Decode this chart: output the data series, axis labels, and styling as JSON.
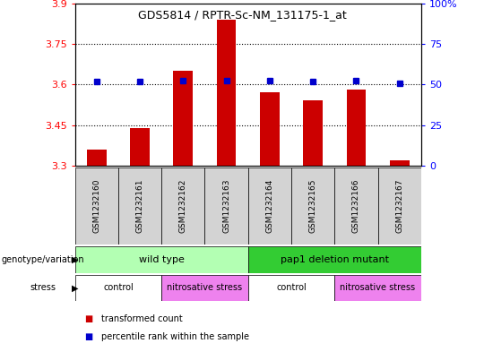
{
  "title": "GDS5814 / RPTR-Sc-NM_131175-1_at",
  "samples": [
    "GSM1232160",
    "GSM1232161",
    "GSM1232162",
    "GSM1232163",
    "GSM1232164",
    "GSM1232165",
    "GSM1232166",
    "GSM1232167"
  ],
  "transformed_counts": [
    3.36,
    3.44,
    3.65,
    3.84,
    3.57,
    3.54,
    3.58,
    3.32
  ],
  "percentile_values": [
    3.61,
    3.61,
    3.615,
    3.615,
    3.615,
    3.61,
    3.615,
    3.605
  ],
  "ylim_left": [
    3.3,
    3.9
  ],
  "ylim_right": [
    0,
    100
  ],
  "yticks_left": [
    3.3,
    3.45,
    3.6,
    3.75,
    3.9
  ],
  "yticks_right": [
    0,
    25,
    50,
    75,
    100
  ],
  "ytick_labels_left": [
    "3.3",
    "3.45",
    "3.6",
    "3.75",
    "3.9"
  ],
  "ytick_labels_right": [
    "0",
    "25",
    "50",
    "75",
    "100%"
  ],
  "bar_color": "#cc0000",
  "percentile_color": "#0000cc",
  "bar_bottom": 3.3,
  "genotype_groups": [
    {
      "label": "wild type",
      "start": 0,
      "end": 4,
      "color": "#b3ffb3"
    },
    {
      "label": "pap1 deletion mutant",
      "start": 4,
      "end": 8,
      "color": "#33cc33"
    }
  ],
  "stress_groups": [
    {
      "label": "control",
      "start": 0,
      "end": 2,
      "color": "#ffffff"
    },
    {
      "label": "nitrosative stress",
      "start": 2,
      "end": 4,
      "color": "#ee82ee"
    },
    {
      "label": "control",
      "start": 4,
      "end": 6,
      "color": "#ffffff"
    },
    {
      "label": "nitrosative stress",
      "start": 6,
      "end": 8,
      "color": "#ee82ee"
    }
  ],
  "legend_red_label": "transformed count",
  "legend_blue_label": "percentile rank within the sample",
  "sample_box_color": "#d3d3d3",
  "grid_dotted_vals": [
    3.45,
    3.6,
    3.75
  ]
}
